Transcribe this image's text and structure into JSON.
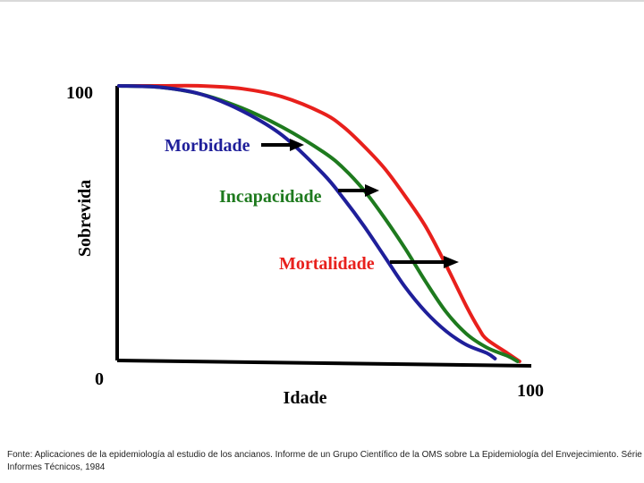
{
  "chart_data": {
    "type": "line",
    "xlabel": "Idade",
    "ylabel": "Sobrevida",
    "x_ticks": [
      "0",
      "100"
    ],
    "y_ticks": [
      "100"
    ],
    "xlim": [
      0,
      100
    ],
    "ylim": [
      0,
      100
    ],
    "grid": false,
    "series": [
      {
        "name": "Morbidade",
        "color": "#1f1f9a",
        "x": [
          0,
          10,
          20,
          30,
          40,
          50,
          55,
          60,
          65,
          70,
          75,
          80,
          85,
          90,
          92
        ],
        "y": [
          100,
          99.5,
          97,
          91,
          82,
          68,
          59,
          49,
          38,
          27,
          18,
          11,
          6,
          3,
          1
        ]
      },
      {
        "name": "Incapacidade",
        "color": "#1e7a1e",
        "x": [
          0,
          10,
          20,
          30,
          40,
          50,
          55,
          60,
          65,
          70,
          75,
          80,
          85,
          90,
          95,
          97.5
        ],
        "y": [
          100,
          99.5,
          97,
          92,
          85,
          76,
          70,
          62,
          52,
          41,
          29,
          18,
          10,
          5,
          2,
          0
        ]
      },
      {
        "name": "Mortalidade",
        "color": "#e8201c",
        "x": [
          0,
          10,
          20,
          30,
          40,
          50,
          55,
          60,
          65,
          70,
          75,
          80,
          85,
          88,
          90,
          95,
          98
        ],
        "y": [
          100,
          100,
          100,
          99,
          96,
          90,
          85,
          78,
          70,
          60,
          49,
          35,
          20,
          12,
          8,
          3,
          0
        ]
      }
    ],
    "annotations": [
      {
        "text": "Morbidade",
        "color": "#1f1f9a"
      },
      {
        "text": "Incapacidade",
        "color": "#1e7a1e"
      },
      {
        "text": "Mortalidade",
        "color": "#e8201c"
      }
    ]
  },
  "source": "Fonte: Aplicaciones de la epidemiología al estudio de los ancianos. Informe de un Grupo Científico de la OMS sobre La Epidemiología del Envejecimiento. Série Informes Técnicos, 1984"
}
